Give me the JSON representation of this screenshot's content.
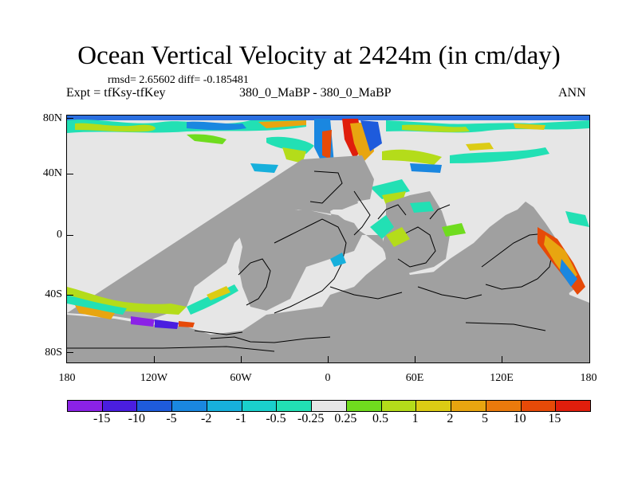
{
  "title": "Ocean Vertical Velocity at 2424m (in cm/day)",
  "stats": "rmsd= 2.65602 diff= -0.185481",
  "experiment": "Expt = tfKsy-tfKey",
  "case_label": "380_0_MaBP - 380_0_MaBP",
  "season": "ANN",
  "axes": {
    "lat_labels": [
      "80N",
      "40N",
      "0",
      "40S",
      "80S"
    ],
    "lat_values": [
      80,
      40,
      0,
      -40,
      -80
    ],
    "lon_labels": [
      "180",
      "120W",
      "60W",
      "0",
      "60E",
      "120E",
      "180"
    ],
    "lon_values": [
      -180,
      -120,
      -60,
      0,
      60,
      120,
      180
    ],
    "lon_range": [
      -180,
      180
    ],
    "lat_range": [
      -90,
      90
    ]
  },
  "colorbar": {
    "labels": [
      "-15",
      "-10",
      "-5",
      "-2",
      "-1",
      "-0.5",
      "-0.25",
      "0.25",
      "0.5",
      "1",
      "2",
      "5",
      "10",
      "15"
    ],
    "colors": [
      "#8b22e6",
      "#4a1ee0",
      "#1e5bdc",
      "#1a87e0",
      "#17b0dc",
      "#1ad0cc",
      "#22e0b4",
      "#e6e6e6",
      "#6fdc1e",
      "#b4dc1a",
      "#dccc14",
      "#e8a510",
      "#ea7a0c",
      "#e64a08",
      "#e01e0c"
    ]
  },
  "colors": {
    "land": "#a0a0a0",
    "ocean_neutral": "#e6e6e6",
    "coastline": "#000000"
  }
}
